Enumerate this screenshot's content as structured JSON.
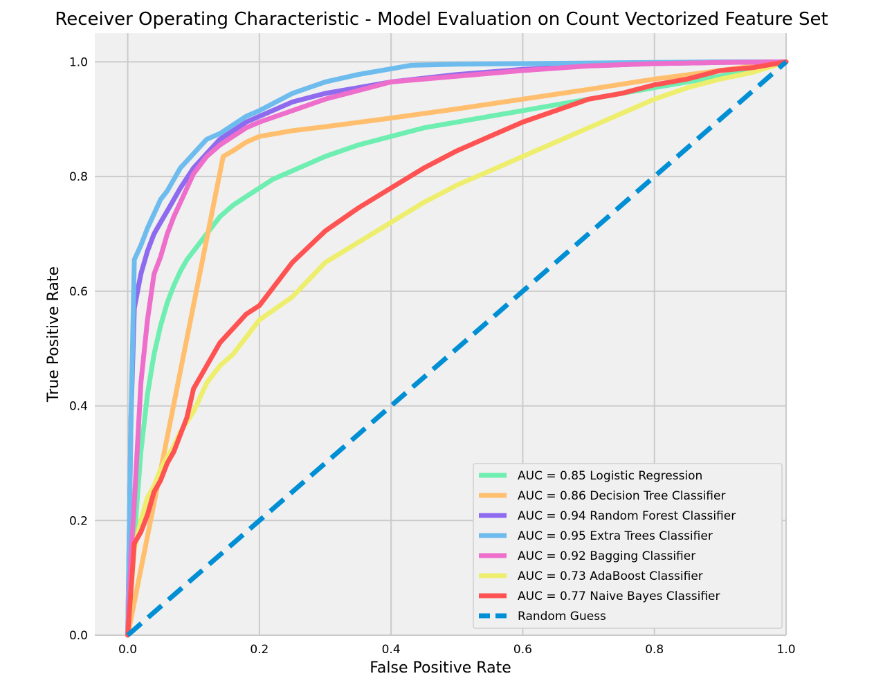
{
  "chart_data": {
    "type": "line",
    "title": "Receiver Operating Characteristic - Model Evaluation on Count Vectorized Feature Set",
    "xlabel": "False Positive Rate",
    "ylabel": "True Positive Rate",
    "xlim": [
      -0.05,
      1.0
    ],
    "ylim": [
      0.0,
      1.05
    ],
    "xticks": [
      "0.0",
      "0.2",
      "0.4",
      "0.6",
      "0.8",
      "1.0"
    ],
    "yticks": [
      "0.0",
      "0.2",
      "0.4",
      "0.6",
      "0.8",
      "1.0"
    ],
    "grid": true,
    "legend_position": "lower-right",
    "background": "#f0f0f0",
    "series": [
      {
        "name": "AUC = 0.85 Logistic Regression",
        "color": "#6eeeb0",
        "dashed": false,
        "x": [
          0,
          0.01,
          0.02,
          0.03,
          0.04,
          0.05,
          0.06,
          0.07,
          0.08,
          0.09,
          0.1,
          0.12,
          0.14,
          0.16,
          0.18,
          0.2,
          0.22,
          0.25,
          0.3,
          0.35,
          0.4,
          0.45,
          0.5,
          0.55,
          0.6,
          0.65,
          0.7,
          0.75,
          0.8,
          0.85,
          0.9,
          0.95,
          1.0
        ],
        "y": [
          0,
          0.17,
          0.32,
          0.42,
          0.49,
          0.54,
          0.58,
          0.61,
          0.635,
          0.655,
          0.67,
          0.7,
          0.73,
          0.75,
          0.765,
          0.78,
          0.795,
          0.81,
          0.835,
          0.855,
          0.87,
          0.885,
          0.895,
          0.905,
          0.915,
          0.925,
          0.935,
          0.945,
          0.955,
          0.965,
          0.975,
          0.987,
          1.0
        ]
      },
      {
        "name": "AUC = 0.86 Decision Tree Classifier",
        "color": "#ffbf6e",
        "dashed": false,
        "x": [
          0,
          0.145,
          0.16,
          0.18,
          0.2,
          0.25,
          0.3,
          0.4,
          0.5,
          0.6,
          0.7,
          0.8,
          0.9,
          1.0
        ],
        "y": [
          0,
          0.835,
          0.845,
          0.86,
          0.87,
          0.88,
          0.887,
          0.902,
          0.918,
          0.935,
          0.952,
          0.97,
          0.985,
          1.0
        ]
      },
      {
        "name": "AUC = 0.94 Random Forest Classifier",
        "color": "#8e6bee",
        "dashed": false,
        "x": [
          0,
          0.005,
          0.01,
          0.015,
          0.02,
          0.03,
          0.04,
          0.05,
          0.06,
          0.08,
          0.1,
          0.12,
          0.14,
          0.16,
          0.18,
          0.2,
          0.25,
          0.3,
          0.35,
          0.4,
          0.5,
          0.6,
          0.7,
          0.8,
          0.9,
          1.0
        ],
        "y": [
          0,
          0.38,
          0.57,
          0.6,
          0.63,
          0.67,
          0.7,
          0.72,
          0.74,
          0.78,
          0.815,
          0.84,
          0.865,
          0.88,
          0.895,
          0.905,
          0.93,
          0.945,
          0.955,
          0.965,
          0.978,
          0.987,
          0.993,
          0.997,
          0.999,
          1.0
        ]
      },
      {
        "name": "AUC = 0.95 Extra Trees Classifier",
        "color": "#6ebcee",
        "dashed": false,
        "x": [
          0,
          0.005,
          0.01,
          0.02,
          0.03,
          0.04,
          0.05,
          0.06,
          0.08,
          0.1,
          0.12,
          0.14,
          0.16,
          0.18,
          0.2,
          0.25,
          0.3,
          0.35,
          0.4,
          0.43,
          0.5,
          0.6,
          0.7,
          0.8,
          0.9,
          1.0
        ],
        "y": [
          0,
          0.38,
          0.655,
          0.68,
          0.71,
          0.735,
          0.76,
          0.775,
          0.815,
          0.84,
          0.865,
          0.875,
          0.89,
          0.905,
          0.915,
          0.945,
          0.965,
          0.978,
          0.988,
          0.994,
          0.996,
          0.997,
          0.998,
          0.999,
          1.0,
          1.0
        ]
      },
      {
        "name": "AUC = 0.92 Bagging Classifier",
        "color": "#ee6ecb",
        "dashed": false,
        "x": [
          0,
          0.005,
          0.01,
          0.02,
          0.03,
          0.04,
          0.05,
          0.06,
          0.07,
          0.08,
          0.1,
          0.12,
          0.14,
          0.16,
          0.18,
          0.2,
          0.25,
          0.3,
          0.35,
          0.4,
          0.5,
          0.6,
          0.7,
          0.8,
          0.9,
          1.0
        ],
        "y": [
          0,
          0.14,
          0.23,
          0.44,
          0.55,
          0.63,
          0.66,
          0.7,
          0.73,
          0.755,
          0.805,
          0.835,
          0.855,
          0.87,
          0.885,
          0.895,
          0.915,
          0.935,
          0.95,
          0.965,
          0.975,
          0.985,
          0.993,
          0.997,
          0.999,
          1.0
        ]
      },
      {
        "name": "AUC = 0.73 AdaBoost Classifier",
        "color": "#eeee6e",
        "dashed": false,
        "x": [
          0,
          0.01,
          0.02,
          0.03,
          0.04,
          0.05,
          0.06,
          0.07,
          0.08,
          0.1,
          0.12,
          0.14,
          0.16,
          0.18,
          0.2,
          0.25,
          0.3,
          0.35,
          0.4,
          0.45,
          0.5,
          0.55,
          0.6,
          0.65,
          0.7,
          0.75,
          0.8,
          0.85,
          0.9,
          0.95,
          1.0
        ],
        "y": [
          0,
          0.15,
          0.2,
          0.24,
          0.26,
          0.29,
          0.31,
          0.33,
          0.355,
          0.39,
          0.44,
          0.47,
          0.49,
          0.52,
          0.55,
          0.59,
          0.65,
          0.685,
          0.72,
          0.755,
          0.785,
          0.81,
          0.835,
          0.86,
          0.885,
          0.91,
          0.935,
          0.955,
          0.97,
          0.982,
          1.0
        ]
      },
      {
        "name": "AUC = 0.77 Naive Bayes Classifier",
        "color": "#ff5252",
        "dashed": false,
        "x": [
          0,
          0.01,
          0.02,
          0.03,
          0.04,
          0.05,
          0.06,
          0.07,
          0.08,
          0.09,
          0.1,
          0.12,
          0.14,
          0.16,
          0.18,
          0.2,
          0.25,
          0.3,
          0.35,
          0.4,
          0.45,
          0.5,
          0.55,
          0.6,
          0.65,
          0.7,
          0.75,
          0.8,
          0.85,
          0.9,
          0.95,
          1.0
        ],
        "y": [
          0,
          0.16,
          0.18,
          0.21,
          0.25,
          0.27,
          0.3,
          0.32,
          0.35,
          0.38,
          0.43,
          0.47,
          0.51,
          0.535,
          0.56,
          0.575,
          0.65,
          0.705,
          0.745,
          0.78,
          0.815,
          0.845,
          0.87,
          0.895,
          0.915,
          0.935,
          0.945,
          0.96,
          0.97,
          0.985,
          0.99,
          1.0
        ]
      },
      {
        "name": "Random Guess",
        "color": "#008fd5",
        "dashed": true,
        "x": [
          0,
          1.0
        ],
        "y": [
          0,
          1.0
        ]
      }
    ]
  }
}
